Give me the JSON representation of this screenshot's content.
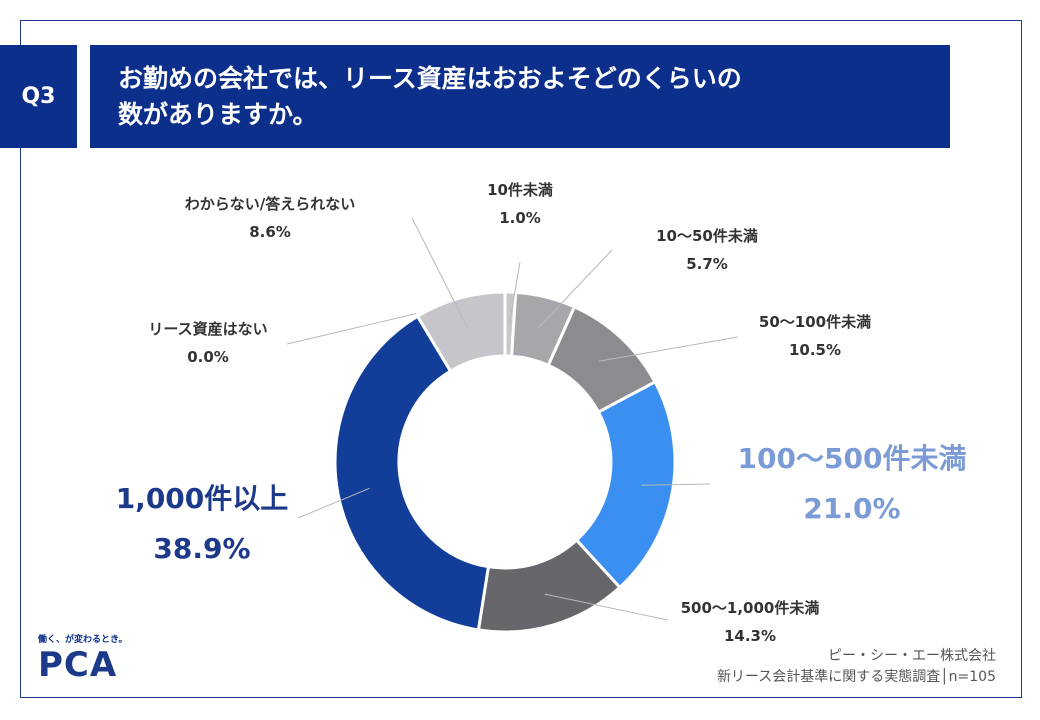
{
  "question": {
    "badge": "Q3",
    "line1": "お勤めの会社では、リース資産はおおよそどのくらいの",
    "line2": "数がありますか。"
  },
  "chart_data": {
    "type": "pie",
    "subtype": "donut",
    "categories": [
      "10件未満",
      "10〜50件未満",
      "50〜100件未満",
      "100〜500件未満",
      "500〜1,000件未満",
      "1,000件以上",
      "リース資産はない",
      "わからない/答えられない"
    ],
    "values": [
      1.0,
      5.7,
      10.5,
      21.0,
      14.3,
      38.9,
      0.0,
      8.6
    ],
    "value_labels": [
      "1.0%",
      "5.7%",
      "10.5%",
      "21.0%",
      "14.3%",
      "38.9%",
      "0.0%",
      "8.6%"
    ],
    "colors": [
      "#c8c8cc",
      "#a7a7ab",
      "#8c8c90",
      "#3a8ff0",
      "#66666b",
      "#123e99",
      "#bcbcc0",
      "#c6c6ca"
    ],
    "start": "12 o'clock",
    "direction": "clockwise"
  },
  "footer": {
    "tagline": "働く、が変わるとき。",
    "logo": "PCA",
    "source_line1": "ピー・シー・エー株式会社",
    "source_line2": "新リース会計基準に関する実態調査│n=105"
  }
}
